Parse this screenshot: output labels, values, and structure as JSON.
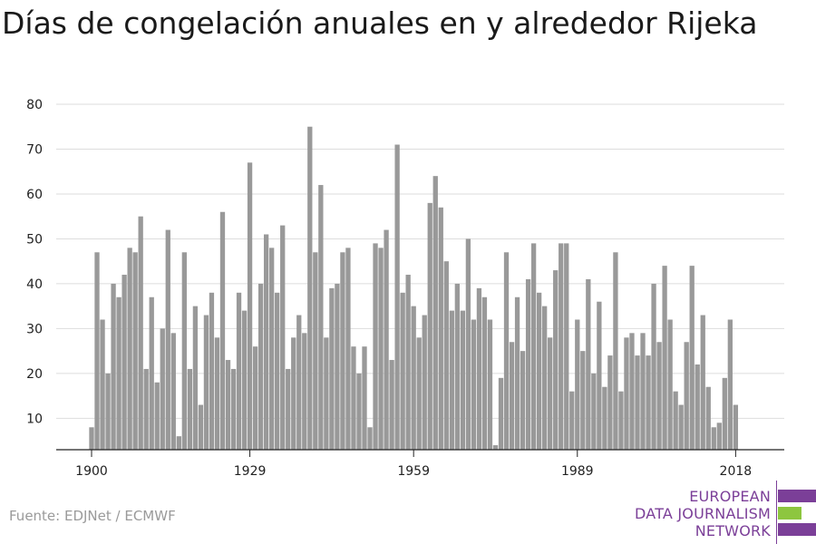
{
  "header": {
    "title": "Días de congelación anuales en y alrededor Rijeka"
  },
  "footer": {
    "source": "Fuente: EDJNet / ECMWF"
  },
  "logo": {
    "line1": "EUROPEAN",
    "line2": "DATA JOURNALISM",
    "line3": "NETWORK",
    "colors": {
      "primary": "#7b3f98",
      "accent": "#8dc63f"
    }
  },
  "chart_data": {
    "type": "bar",
    "title": "Días de congelación anuales en y alrededor Rijeka",
    "xlabel": "",
    "ylabel": "",
    "x_start": 1900,
    "x_end": 2020,
    "x_ticks": [
      1900,
      1929,
      1959,
      1989,
      2018
    ],
    "y_ticks": [
      10,
      20,
      30,
      40,
      50,
      60,
      70,
      80
    ],
    "ylim": [
      3,
      80
    ],
    "grid": true,
    "bar_color": "#999999",
    "values": [
      8,
      47,
      32,
      20,
      40,
      37,
      42,
      48,
      47,
      55,
      21,
      37,
      18,
      30,
      52,
      29,
      6,
      47,
      21,
      35,
      13,
      33,
      38,
      28,
      56,
      23,
      21,
      38,
      34,
      67,
      26,
      40,
      51,
      48,
      38,
      53,
      21,
      28,
      33,
      29,
      75,
      47,
      62,
      28,
      39,
      40,
      47,
      48,
      26,
      20,
      26,
      8,
      49,
      48,
      52,
      23,
      71,
      38,
      42,
      35,
      28,
      33,
      58,
      64,
      57,
      45,
      34,
      40,
      34,
      50,
      32,
      39,
      37,
      32,
      4,
      19,
      47,
      27,
      37,
      25,
      41,
      49,
      38,
      35,
      28,
      43,
      49,
      49,
      16,
      32,
      25,
      41,
      20,
      36,
      17,
      24,
      47,
      16,
      28,
      29,
      24,
      29,
      24,
      40,
      27,
      44,
      32,
      16,
      13,
      27,
      44,
      22,
      33,
      17,
      8,
      9,
      19,
      32,
      13
    ]
  }
}
